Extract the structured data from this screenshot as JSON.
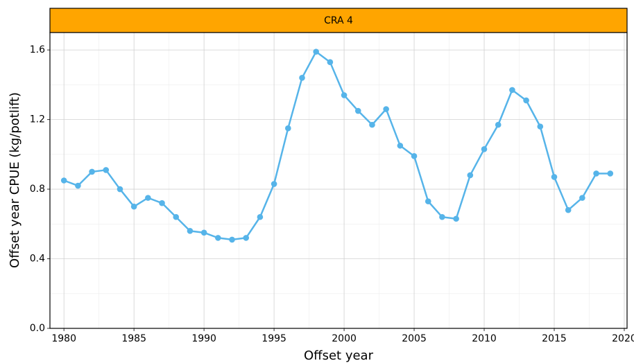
{
  "chart_data": {
    "type": "line",
    "strip": "CRA 4",
    "x_label": "Offset year",
    "y_label": "Offset year CPUE (kg/potlift)",
    "x": [
      1980,
      1981,
      1982,
      1983,
      1984,
      1985,
      1986,
      1987,
      1988,
      1989,
      1990,
      1991,
      1992,
      1993,
      1994,
      1995,
      1996,
      1997,
      1998,
      1999,
      2000,
      2001,
      2002,
      2003,
      2004,
      2005,
      2006,
      2007,
      2008,
      2009,
      2010,
      2011,
      2012,
      2013,
      2014,
      2015,
      2016,
      2017,
      2018,
      2019
    ],
    "series": [
      {
        "color": "#56b4e9",
        "values": [
          0.85,
          0.82,
          0.9,
          0.91,
          0.8,
          0.7,
          0.75,
          0.72,
          0.64,
          0.56,
          0.55,
          0.52,
          0.51,
          0.52,
          0.64,
          0.83,
          1.15,
          1.44,
          1.59,
          1.53,
          1.34,
          1.25,
          1.17,
          1.26,
          1.05,
          0.99,
          0.73,
          0.64,
          0.63,
          0.88,
          1.03,
          1.17,
          1.37,
          1.31,
          1.16,
          0.87,
          0.68,
          0.75,
          0.89,
          0.89
        ]
      }
    ],
    "xlim": [
      1979,
      2020.2
    ],
    "ylim": [
      0,
      1.7
    ],
    "xticks": [
      1980,
      1985,
      1990,
      1995,
      2000,
      2005,
      2010,
      2015,
      2020
    ],
    "yticks": [
      {
        "value": 0,
        "label": "0.0"
      },
      0.4,
      0.8,
      1.2,
      1.6
    ],
    "grid": true,
    "strip_color": "#ffa500"
  }
}
